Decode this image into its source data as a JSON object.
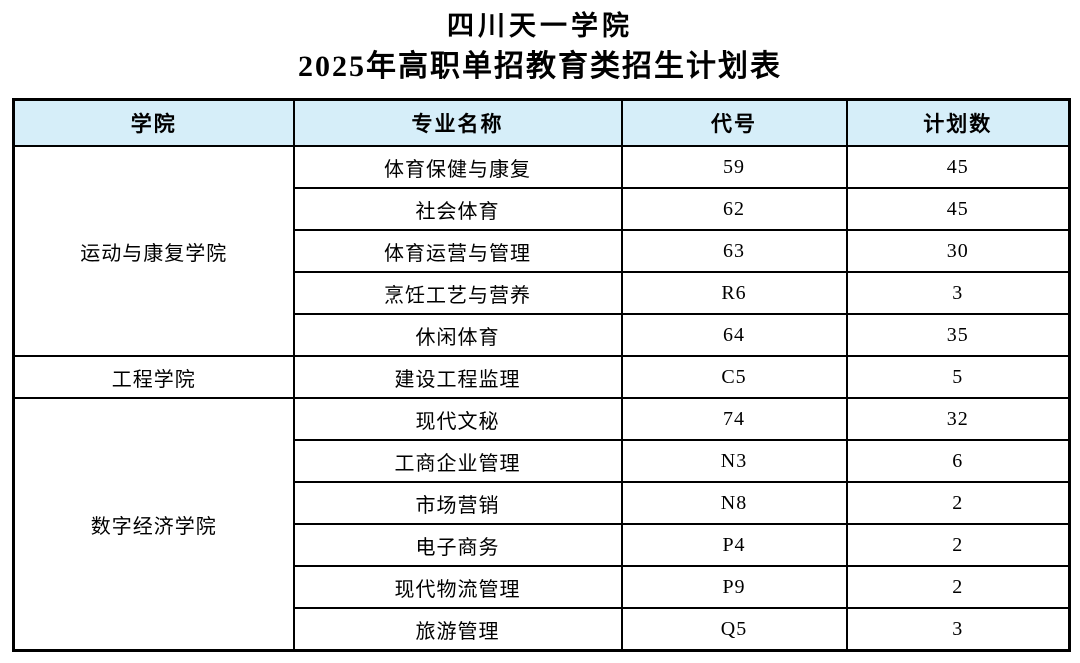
{
  "title": {
    "line1": "四川天一学院",
    "line2": "2025年高职单招教育类招生计划表"
  },
  "table": {
    "headers": [
      "学院",
      "专业名称",
      "代号",
      "计划数"
    ],
    "groups": [
      {
        "college": "运动与康复学院",
        "majors": [
          {
            "name": "体育保健与康复",
            "code": "59",
            "plan": "45"
          },
          {
            "name": "社会体育",
            "code": "62",
            "plan": "45"
          },
          {
            "name": "体育运营与管理",
            "code": "63",
            "plan": "30"
          },
          {
            "name": "烹饪工艺与营养",
            "code": "R6",
            "plan": "3"
          },
          {
            "name": "休闲体育",
            "code": "64",
            "plan": "35"
          }
        ]
      },
      {
        "college": "工程学院",
        "majors": [
          {
            "name": "建设工程监理",
            "code": "C5",
            "plan": "5"
          }
        ]
      },
      {
        "college": "数字经济学院",
        "majors": [
          {
            "name": "现代文秘",
            "code": "74",
            "plan": "32"
          },
          {
            "name": "工商企业管理",
            "code": "N3",
            "plan": "6"
          },
          {
            "name": "市场营销",
            "code": "N8",
            "plan": "2"
          },
          {
            "name": "电子商务",
            "code": "P4",
            "plan": "2"
          },
          {
            "name": "现代物流管理",
            "code": "P9",
            "plan": "2"
          },
          {
            "name": "旅游管理",
            "code": "Q5",
            "plan": "3"
          }
        ]
      }
    ]
  },
  "colors": {
    "header_bg": "#d6eef9",
    "border": "#000000",
    "text": "#000000"
  }
}
